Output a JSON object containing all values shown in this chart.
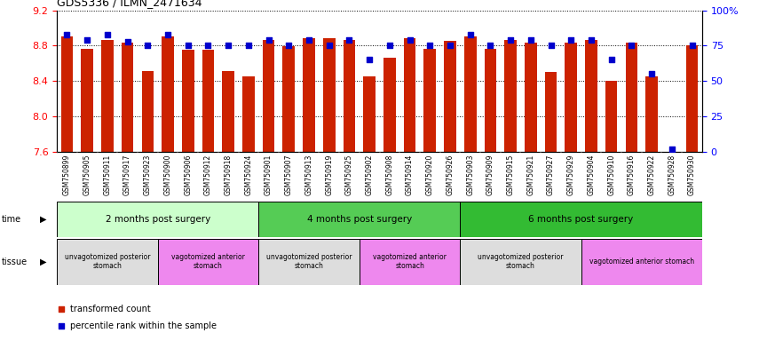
{
  "title": "GDS5336 / ILMN_2471634",
  "samples": [
    "GSM750899",
    "GSM750905",
    "GSM750911",
    "GSM750917",
    "GSM750923",
    "GSM750900",
    "GSM750906",
    "GSM750912",
    "GSM750918",
    "GSM750924",
    "GSM750901",
    "GSM750907",
    "GSM750913",
    "GSM750919",
    "GSM750925",
    "GSM750902",
    "GSM750908",
    "GSM750914",
    "GSM750920",
    "GSM750926",
    "GSM750903",
    "GSM750909",
    "GSM750915",
    "GSM750921",
    "GSM750927",
    "GSM750929",
    "GSM750904",
    "GSM750910",
    "GSM750916",
    "GSM750922",
    "GSM750928",
    "GSM750930"
  ],
  "bar_values": [
    8.9,
    8.76,
    8.86,
    8.83,
    8.51,
    8.9,
    8.75,
    8.75,
    8.51,
    8.45,
    8.86,
    8.79,
    8.88,
    8.88,
    8.86,
    8.45,
    8.66,
    8.88,
    8.76,
    8.85,
    8.9,
    8.76,
    8.86,
    8.83,
    8.5,
    8.83,
    8.86,
    8.4,
    8.83,
    8.45,
    7.6,
    8.8
  ],
  "dot_values": [
    83,
    79,
    83,
    78,
    75,
    83,
    75,
    75,
    75,
    75,
    79,
    75,
    79,
    75,
    79,
    65,
    75,
    79,
    75,
    75,
    83,
    75,
    79,
    79,
    75,
    79,
    79,
    65,
    75,
    55,
    2,
    75
  ],
  "ylim_left": [
    7.6,
    9.2
  ],
  "ylim_right": [
    0,
    100
  ],
  "yticks_left": [
    7.6,
    8.0,
    8.4,
    8.8,
    9.2
  ],
  "yticks_right": [
    0,
    25,
    50,
    75,
    100
  ],
  "bar_color": "#cc2200",
  "dot_color": "#0000cc",
  "bar_bottom": 7.6,
  "time_groups": [
    {
      "label": "2 months post surgery",
      "start": 0,
      "end": 9,
      "color": "#ccffcc"
    },
    {
      "label": "4 months post surgery",
      "start": 10,
      "end": 19,
      "color": "#55cc55"
    },
    {
      "label": "6 months post surgery",
      "start": 20,
      "end": 31,
      "color": "#33bb33"
    }
  ],
  "tissue_groups": [
    {
      "label": "unvagotomized posterior\nstomach",
      "start": 0,
      "end": 4,
      "color": "#dddddd"
    },
    {
      "label": "vagotomized anterior\nstomach",
      "start": 5,
      "end": 9,
      "color": "#ee88ee"
    },
    {
      "label": "unvagotomized posterior\nstomach",
      "start": 10,
      "end": 14,
      "color": "#dddddd"
    },
    {
      "label": "vagotomized anterior\nstomach",
      "start": 15,
      "end": 19,
      "color": "#ee88ee"
    },
    {
      "label": "unvagotomized posterior\nstomach",
      "start": 20,
      "end": 25,
      "color": "#dddddd"
    },
    {
      "label": "vagotomized anterior stomach",
      "start": 26,
      "end": 31,
      "color": "#ee88ee"
    }
  ],
  "legend_items": [
    {
      "color": "#cc2200",
      "label": "transformed count"
    },
    {
      "color": "#0000cc",
      "label": "percentile rank within the sample"
    }
  ],
  "xticklabel_bg": "#cccccc"
}
